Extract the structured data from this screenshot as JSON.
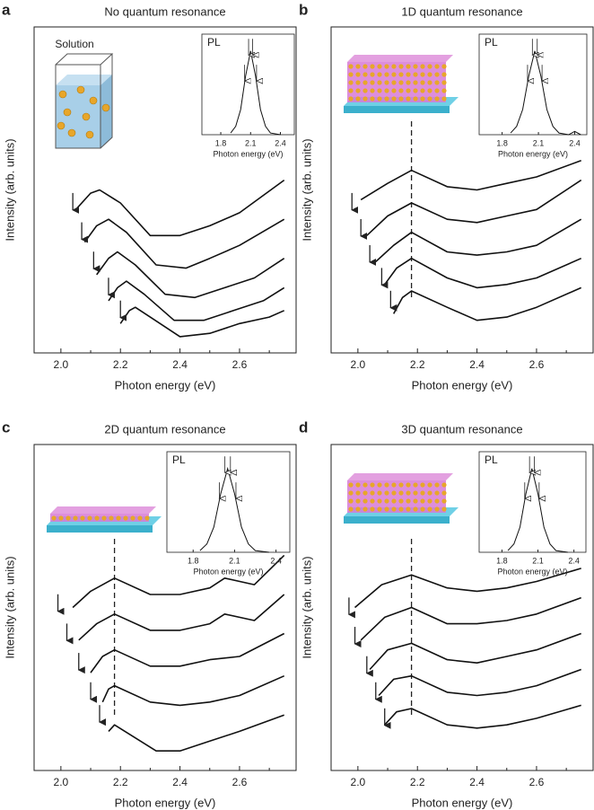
{
  "chart_data": [
    {
      "type": "line",
      "label": "a",
      "title": "No quantum resonance",
      "xlabel": "Photon energy (eV)",
      "ylabel": "Intensity (arb. units)",
      "illustration_label": "Solution",
      "xlim": [
        1.91,
        2.79
      ],
      "xticks": [
        {
          "value": 2,
          "label": "2.0"
        },
        2.2,
        2.4,
        2.6
      ],
      "ylim": [
        0,
        10
      ],
      "series": [
        {
          "x": [
            2.05,
            2.1,
            2.13,
            2.2,
            2.3,
            2.4,
            2.5,
            2.6,
            2.75
          ],
          "values": [
            4.4,
            4.9,
            5.0,
            4.6,
            3.6,
            3.6,
            3.9,
            4.3,
            5.3
          ]
        },
        {
          "x": [
            2.08,
            2.12,
            2.16,
            2.22,
            2.32,
            2.42,
            2.5,
            2.6,
            2.75
          ],
          "values": [
            3.4,
            3.9,
            4.1,
            3.7,
            2.7,
            2.6,
            2.9,
            3.3,
            4.1
          ]
        },
        {
          "x": [
            2.12,
            2.16,
            2.19,
            2.25,
            2.35,
            2.45,
            2.55,
            2.65,
            2.75
          ],
          "values": [
            2.4,
            2.9,
            3.1,
            2.7,
            1.8,
            1.7,
            2.0,
            2.3,
            2.9
          ]
        },
        {
          "x": [
            2.16,
            2.19,
            2.22,
            2.28,
            2.38,
            2.48,
            2.58,
            2.68,
            2.75
          ],
          "values": [
            1.6,
            2.0,
            2.2,
            1.8,
            1.0,
            1.0,
            1.3,
            1.6,
            2.0
          ]
        },
        {
          "x": [
            2.2,
            2.23,
            2.25,
            2.3,
            2.4,
            2.5,
            2.6,
            2.7,
            2.75
          ],
          "values": [
            0.9,
            1.3,
            1.4,
            1.1,
            0.5,
            0.6,
            0.9,
            1.1,
            1.3
          ]
        }
      ],
      "arrows_x": [
        2.04,
        2.07,
        2.11,
        2.16,
        2.2
      ],
      "arrows_y": [
        4.3,
        3.4,
        2.5,
        1.7,
        1.0
      ],
      "inset": {
        "type": "line",
        "label": "PL",
        "xlabel": "Photon energy (eV)",
        "xlim": [
          1.61,
          2.54
        ],
        "xticks": [
          1.8,
          2.1,
          2.4
        ],
        "ylim": [
          0,
          1.2
        ],
        "x": [
          1.9,
          1.95,
          2.0,
          2.05,
          2.1,
          2.15,
          2.2,
          2.25,
          2.3,
          2.4
        ],
        "values": [
          0.02,
          0.1,
          0.3,
          0.7,
          1.0,
          0.7,
          0.3,
          0.1,
          0.02,
          0
        ],
        "arrows_x": [
          2.04,
          2.08,
          2.12,
          2.16
        ],
        "arrows_y": [
          0.62,
          0.93,
          0.93,
          0.62
        ]
      }
    },
    {
      "type": "line",
      "label": "b",
      "title": "1D quantum resonance",
      "xlabel": "Photon energy (eV)",
      "ylabel": "Intensity (arb. units)",
      "xlim": [
        1.91,
        2.79
      ],
      "xticks": [
        {
          "value": 2,
          "label": "2.0"
        },
        2.2,
        2.4,
        2.6
      ],
      "ylim": [
        0,
        10
      ],
      "vline": 2.18,
      "series": [
        {
          "x": [
            2.01,
            2.1,
            2.18,
            2.3,
            2.4,
            2.5,
            2.6,
            2.75
          ],
          "values": [
            4.7,
            5.2,
            5.6,
            5.1,
            5.0,
            5.2,
            5.4,
            5.9
          ]
        },
        {
          "x": [
            2.03,
            2.1,
            2.18,
            2.3,
            2.4,
            2.5,
            2.6,
            2.75
          ],
          "values": [
            3.6,
            4.2,
            4.6,
            4.1,
            4.0,
            4.2,
            4.4,
            5.3
          ]
        },
        {
          "x": [
            2.06,
            2.12,
            2.18,
            2.3,
            2.4,
            2.5,
            2.6,
            2.75
          ],
          "values": [
            2.8,
            3.3,
            3.7,
            3.1,
            3.0,
            3.1,
            3.3,
            4.1
          ]
        },
        {
          "x": [
            2.09,
            2.13,
            2.18,
            2.3,
            2.4,
            2.5,
            2.6,
            2.75
          ],
          "values": [
            2.1,
            2.6,
            2.9,
            2.3,
            2.0,
            2.1,
            2.3,
            2.9
          ]
        },
        {
          "x": [
            2.12,
            2.15,
            2.18,
            2.3,
            2.4,
            2.5,
            2.6,
            2.75
          ],
          "values": [
            1.2,
            1.7,
            1.9,
            1.4,
            1.0,
            1.1,
            1.4,
            2.0
          ]
        }
      ],
      "arrows_x": [
        1.98,
        2.01,
        2.04,
        2.08,
        2.11
      ],
      "arrows_y": [
        4.3,
        3.5,
        2.7,
        2.0,
        1.3
      ],
      "inset": {
        "type": "line",
        "label": "PL",
        "xlabel": "Photon energy (eV)",
        "xlim": [
          1.61,
          2.5
        ],
        "xticks": [
          1.8,
          2.1,
          2.4
        ],
        "ylim": [
          0,
          1.2
        ],
        "x": [
          1.87,
          1.92,
          1.97,
          2.02,
          2.07,
          2.12,
          2.17,
          2.22,
          2.27,
          2.35,
          2.4,
          2.45
        ],
        "values": [
          0.02,
          0.1,
          0.3,
          0.7,
          1.0,
          0.7,
          0.3,
          0.1,
          0.02,
          0,
          0.04,
          0
        ],
        "arrows_x": [
          2.01,
          2.05,
          2.09,
          2.13
        ],
        "arrows_y": [
          0.62,
          0.93,
          0.93,
          0.62
        ]
      }
    },
    {
      "type": "line",
      "label": "c",
      "title": "2D quantum resonance",
      "xlabel": "Photon energy (eV)",
      "ylabel": "Intensity (arb. units)",
      "xlim": [
        1.91,
        2.79
      ],
      "xticks": [
        {
          "value": 2,
          "label": "2.0"
        },
        2.2,
        2.4,
        2.6
      ],
      "ylim": [
        0,
        10
      ],
      "vline": 2.18,
      "series": [
        {
          "x": [
            2.04,
            2.1,
            2.18,
            2.3,
            2.4,
            2.5,
            2.55,
            2.65,
            2.75
          ],
          "values": [
            5.0,
            5.5,
            5.9,
            5.4,
            5.4,
            5.6,
            5.9,
            5.7,
            6.6
          ]
        },
        {
          "x": [
            2.06,
            2.12,
            2.18,
            2.3,
            2.4,
            2.5,
            2.55,
            2.65,
            2.75
          ],
          "values": [
            4.0,
            4.5,
            4.8,
            4.3,
            4.3,
            4.5,
            4.8,
            4.6,
            5.4
          ]
        },
        {
          "x": [
            2.1,
            2.14,
            2.18,
            2.3,
            2.4,
            2.5,
            2.6,
            2.75
          ],
          "values": [
            3.0,
            3.5,
            3.7,
            3.2,
            3.2,
            3.4,
            3.5,
            4.2
          ]
        },
        {
          "x": [
            2.14,
            2.16,
            2.18,
            2.3,
            2.4,
            2.5,
            2.6,
            2.75
          ],
          "values": [
            2.1,
            2.5,
            2.6,
            2.1,
            2.0,
            2.1,
            2.3,
            2.9
          ]
        },
        {
          "x": [
            2.16,
            2.18,
            2.25,
            2.32,
            2.4,
            2.5,
            2.6,
            2.75
          ],
          "values": [
            1.2,
            1.4,
            1.0,
            0.6,
            0.6,
            0.9,
            1.2,
            1.7
          ]
        }
      ],
      "arrows_x": [
        1.99,
        2.02,
        2.06,
        2.1,
        2.13
      ],
      "arrows_y": [
        4.8,
        3.9,
        3.0,
        2.1,
        1.4
      ],
      "inset": {
        "type": "line",
        "label": "PL",
        "xlabel": "Photon energy (eV)",
        "xlim": [
          1.61,
          2.5
        ],
        "xticks": [
          1.8,
          2.1,
          2.4
        ],
        "ylim": [
          0,
          1.2
        ],
        "x": [
          1.85,
          1.9,
          1.95,
          2.0,
          2.05,
          2.1,
          2.15,
          2.2,
          2.25,
          2.35
        ],
        "values": [
          0.02,
          0.1,
          0.3,
          0.7,
          1.0,
          0.7,
          0.3,
          0.1,
          0.02,
          0
        ],
        "arrows_x": [
          1.99,
          2.03,
          2.07,
          2.11
        ],
        "arrows_y": [
          0.62,
          0.93,
          0.93,
          0.62
        ]
      }
    },
    {
      "type": "line",
      "label": "d",
      "title": "3D quantum resonance",
      "xlabel": "Photon energy (eV)",
      "ylabel": "Intensity (arb. units)",
      "xlim": [
        1.91,
        2.79
      ],
      "xticks": [
        {
          "value": 2,
          "label": "2.0"
        },
        2.2,
        2.4,
        2.6
      ],
      "ylim": [
        0,
        10
      ],
      "vline": 2.18,
      "series": [
        {
          "x": [
            1.99,
            2.08,
            2.18,
            2.3,
            2.4,
            2.5,
            2.6,
            2.75
          ],
          "values": [
            5.0,
            5.7,
            6.0,
            5.6,
            5.5,
            5.6,
            5.8,
            6.2
          ]
        },
        {
          "x": [
            2.01,
            2.09,
            2.18,
            2.3,
            2.4,
            2.5,
            2.6,
            2.75
          ],
          "values": [
            4.0,
            4.7,
            5.0,
            4.5,
            4.5,
            4.6,
            4.8,
            5.3
          ]
        },
        {
          "x": [
            2.04,
            2.1,
            2.18,
            2.3,
            2.4,
            2.5,
            2.6,
            2.75
          ],
          "values": [
            3.1,
            3.7,
            3.9,
            3.4,
            3.3,
            3.5,
            3.7,
            4.2
          ]
        },
        {
          "x": [
            2.07,
            2.12,
            2.18,
            2.3,
            2.4,
            2.5,
            2.6,
            2.75
          ],
          "values": [
            2.3,
            2.8,
            2.9,
            2.4,
            2.3,
            2.4,
            2.6,
            3.1
          ]
        },
        {
          "x": [
            2.09,
            2.13,
            2.18,
            2.3,
            2.4,
            2.5,
            2.6,
            2.75
          ],
          "values": [
            1.4,
            1.8,
            1.9,
            1.4,
            1.3,
            1.4,
            1.6,
            2.0
          ]
        }
      ],
      "arrows_x": [
        1.97,
        1.99,
        2.03,
        2.06,
        2.09
      ],
      "arrows_y": [
        4.7,
        3.8,
        2.9,
        2.1,
        1.3
      ],
      "inset": {
        "type": "line",
        "label": "PL",
        "xlabel": "Photon energy (eV)",
        "xlim": [
          1.61,
          2.5
        ],
        "xticks": [
          1.8,
          2.1,
          2.4
        ],
        "ylim": [
          0,
          1.2
        ],
        "x": [
          1.85,
          1.9,
          1.95,
          2.0,
          2.05,
          2.1,
          2.15,
          2.2,
          2.25,
          2.35
        ],
        "values": [
          0.02,
          0.1,
          0.3,
          0.7,
          1.0,
          0.7,
          0.3,
          0.1,
          0.02,
          0
        ],
        "arrows_x": [
          1.99,
          2.03,
          2.07,
          2.11
        ],
        "arrows_y": [
          0.62,
          0.93,
          0.93,
          0.62
        ]
      }
    }
  ]
}
